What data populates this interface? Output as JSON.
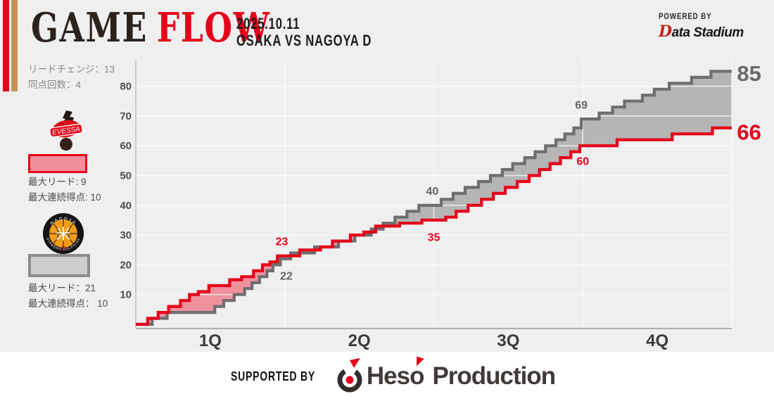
{
  "header": {
    "game": "GAME",
    "flow": "FLOW",
    "date": "2025.10.11",
    "matchup": "OSAKA VS NAGOYA D"
  },
  "powered": {
    "label": "POWERED BY",
    "brand_d": "D",
    "brand_rest": "ata Stadium"
  },
  "stats": {
    "lead_changes": "リードチェンジ：13",
    "ties": "同点回数：4"
  },
  "teams": {
    "osaka": {
      "logo_text": "EVESSA",
      "max_lead": "最大リード: 9",
      "max_run": "最大連続得点: 10",
      "color": "#e50019",
      "fill": "#f0919e"
    },
    "nagoya": {
      "logo_text": "NAGOYA",
      "logo_sub": "DIAMOND DOLPHINS",
      "logo_mark": "米",
      "logo_d": "D",
      "max_lead": "最大リード：21",
      "max_run": "最大連続得点： 10",
      "color": "#6e6e6e",
      "fill": "#b5b5b5"
    }
  },
  "footer": {
    "supported_by": "SUPPORTED BY",
    "brand_heso": "Heso",
    "brand_production": "Production"
  },
  "chart_data": {
    "type": "line",
    "subtype": "step-game-flow",
    "x_axis": {
      "labels": [
        "1Q",
        "2Q",
        "3Q",
        "4Q"
      ],
      "label_centers": [
        5,
        15,
        25,
        35
      ],
      "boundaries": [
        10,
        20,
        30,
        40
      ],
      "range": [
        0,
        40
      ]
    },
    "y_axis": {
      "ticks": [
        10,
        20,
        30,
        40,
        50,
        60,
        70,
        80
      ],
      "range": [
        0,
        88
      ]
    },
    "quarter_scores": {
      "osaka": [
        23,
        35,
        60,
        66
      ],
      "nagoya": [
        22,
        40,
        69,
        85
      ]
    },
    "series": [
      {
        "name": "OSAKA EVESSA",
        "color": "#e50019",
        "fill": "#f0919e",
        "final": 66,
        "values": [
          [
            0,
            0
          ],
          [
            0.8,
            2
          ],
          [
            1.5,
            4
          ],
          [
            2.2,
            6
          ],
          [
            3.0,
            8
          ],
          [
            3.6,
            10
          ],
          [
            4.2,
            11
          ],
          [
            4.9,
            13
          ],
          [
            6.3,
            15
          ],
          [
            7.1,
            16
          ],
          [
            7.9,
            18
          ],
          [
            8.5,
            20
          ],
          [
            9.0,
            21
          ],
          [
            9.5,
            23
          ],
          [
            11.0,
            25
          ],
          [
            12.4,
            26
          ],
          [
            13.2,
            28
          ],
          [
            14.4,
            30
          ],
          [
            15.3,
            31
          ],
          [
            16.1,
            33
          ],
          [
            17.7,
            34
          ],
          [
            19.2,
            35
          ],
          [
            20.8,
            36
          ],
          [
            21.5,
            38
          ],
          [
            22.3,
            40
          ],
          [
            23.2,
            42
          ],
          [
            24.0,
            44
          ],
          [
            24.8,
            46
          ],
          [
            25.6,
            48
          ],
          [
            26.4,
            50
          ],
          [
            27.1,
            52
          ],
          [
            27.8,
            54
          ],
          [
            28.5,
            56
          ],
          [
            29.2,
            58
          ],
          [
            29.8,
            60
          ],
          [
            32.3,
            62
          ],
          [
            36.0,
            64
          ],
          [
            38.7,
            66
          ],
          [
            40,
            66
          ]
        ]
      },
      {
        "name": "NAGOYA DIAMOND DOLPHINS",
        "color": "#6e6e6e",
        "fill": "#b5b5b5",
        "final": 85,
        "values": [
          [
            0,
            0
          ],
          [
            1.1,
            2
          ],
          [
            2.1,
            4
          ],
          [
            5.3,
            6
          ],
          [
            5.9,
            8
          ],
          [
            6.6,
            10
          ],
          [
            7.3,
            12
          ],
          [
            7.8,
            14
          ],
          [
            8.3,
            16
          ],
          [
            8.8,
            18
          ],
          [
            9.2,
            20
          ],
          [
            9.7,
            22
          ],
          [
            10.4,
            24
          ],
          [
            12.0,
            26
          ],
          [
            13.6,
            28
          ],
          [
            14.7,
            30
          ],
          [
            15.8,
            32
          ],
          [
            16.6,
            34
          ],
          [
            17.4,
            36
          ],
          [
            18.2,
            38
          ],
          [
            19.0,
            40
          ],
          [
            20.5,
            42
          ],
          [
            21.3,
            44
          ],
          [
            22.1,
            46
          ],
          [
            23.0,
            48
          ],
          [
            23.8,
            50
          ],
          [
            24.6,
            52
          ],
          [
            25.3,
            54
          ],
          [
            26.1,
            56
          ],
          [
            26.8,
            58
          ],
          [
            27.5,
            60
          ],
          [
            28.2,
            62
          ],
          [
            28.8,
            64
          ],
          [
            29.4,
            66
          ],
          [
            29.9,
            69
          ],
          [
            31.1,
            71
          ],
          [
            32.0,
            73
          ],
          [
            32.8,
            75
          ],
          [
            34.0,
            77
          ],
          [
            34.8,
            79
          ],
          [
            35.8,
            81
          ],
          [
            37.3,
            83
          ],
          [
            38.6,
            85
          ],
          [
            40,
            85
          ]
        ]
      }
    ],
    "annotations": [
      {
        "text": "23",
        "t": 9.8,
        "s": 26.6,
        "size": 16,
        "color": "#e50019",
        "anchor": "middle"
      },
      {
        "text": "22",
        "t": 10.1,
        "s": 15.0,
        "size": 16,
        "color": "#636363",
        "anchor": "middle"
      },
      {
        "text": "40",
        "t": 19.9,
        "s": 43.5,
        "size": 16,
        "color": "#636363",
        "anchor": "middle"
      },
      {
        "text": "35",
        "t": 20.0,
        "s": 28.0,
        "size": 16,
        "color": "#e50019",
        "anchor": "middle"
      },
      {
        "text": "69",
        "t": 29.9,
        "s": 72.5,
        "size": 16,
        "color": "#636363",
        "anchor": "middle"
      },
      {
        "text": "60",
        "t": 30.0,
        "s": 53.5,
        "size": 16,
        "color": "#e50019",
        "anchor": "middle"
      },
      {
        "text": "85",
        "t": 40.35,
        "s": 81.8,
        "size": 31,
        "color": "#6a6a6a",
        "anchor": "start"
      },
      {
        "text": "66",
        "t": 40.35,
        "s": 62.0,
        "size": 31,
        "color": "#e50019",
        "anchor": "start"
      }
    ]
  }
}
